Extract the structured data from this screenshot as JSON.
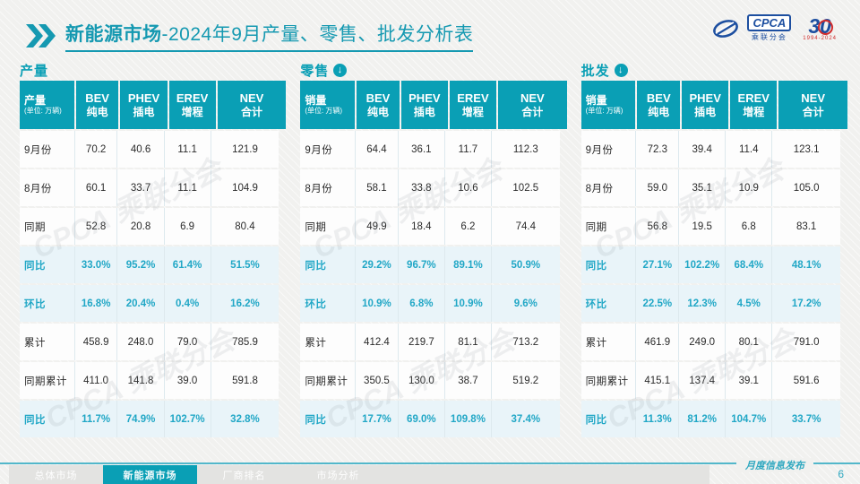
{
  "header": {
    "title_bold": "新能源市场",
    "title_rest": "-2024年9月产量、零售、批发分析表"
  },
  "logo": {
    "cpca": "CPCA",
    "sub": "乘联分会",
    "anniversary": "30",
    "years": "1994-2024"
  },
  "watermark": "CPCA 乘联分会",
  "colors": {
    "accent": "#0a9fb5",
    "highlight_text": "#21a7c6",
    "title": "#1599b1"
  },
  "tables": [
    {
      "section": "产量",
      "row_header": {
        "label": "产量",
        "unit": "(单位: 万辆)"
      },
      "columns": [
        {
          "en": "BEV",
          "cn": "纯电"
        },
        {
          "en": "PHEV",
          "cn": "插电"
        },
        {
          "en": "EREV",
          "cn": "增程"
        },
        {
          "en": "NEV",
          "cn": "合计"
        }
      ],
      "rows": [
        {
          "label": "9月份",
          "values": [
            "70.2",
            "40.6",
            "11.1",
            "121.9"
          ],
          "highlight": false
        },
        {
          "label": "8月份",
          "values": [
            "60.1",
            "33.7",
            "11.1",
            "104.9"
          ],
          "highlight": false
        },
        {
          "label": "同期",
          "values": [
            "52.8",
            "20.8",
            "6.9",
            "80.4"
          ],
          "highlight": false
        },
        {
          "label": "同比",
          "values": [
            "33.0%",
            "95.2%",
            "61.4%",
            "51.5%"
          ],
          "highlight": true
        },
        {
          "label": "环比",
          "values": [
            "16.8%",
            "20.4%",
            "0.4%",
            "16.2%"
          ],
          "highlight": true
        },
        {
          "label": "累计",
          "values": [
            "458.9",
            "248.0",
            "79.0",
            "785.9"
          ],
          "highlight": false
        },
        {
          "label": "同期累计",
          "values": [
            "411.0",
            "141.8",
            "39.0",
            "591.8"
          ],
          "highlight": false
        },
        {
          "label": "同比",
          "values": [
            "11.7%",
            "74.9%",
            "102.7%",
            "32.8%"
          ],
          "highlight": true
        }
      ]
    },
    {
      "section": "零售",
      "has_icon": true,
      "row_header": {
        "label": "销量",
        "unit": "(单位: 万辆)"
      },
      "columns": [
        {
          "en": "BEV",
          "cn": "纯电"
        },
        {
          "en": "PHEV",
          "cn": "插电"
        },
        {
          "en": "EREV",
          "cn": "增程"
        },
        {
          "en": "NEV",
          "cn": "合计"
        }
      ],
      "rows": [
        {
          "label": "9月份",
          "values": [
            "64.4",
            "36.1",
            "11.7",
            "112.3"
          ],
          "highlight": false
        },
        {
          "label": "8月份",
          "values": [
            "58.1",
            "33.8",
            "10.6",
            "102.5"
          ],
          "highlight": false
        },
        {
          "label": "同期",
          "values": [
            "49.9",
            "18.4",
            "6.2",
            "74.4"
          ],
          "highlight": false
        },
        {
          "label": "同比",
          "values": [
            "29.2%",
            "96.7%",
            "89.1%",
            "50.9%"
          ],
          "highlight": true
        },
        {
          "label": "环比",
          "values": [
            "10.9%",
            "6.8%",
            "10.9%",
            "9.6%"
          ],
          "highlight": true
        },
        {
          "label": "累计",
          "values": [
            "412.4",
            "219.7",
            "81.1",
            "713.2"
          ],
          "highlight": false
        },
        {
          "label": "同期累计",
          "values": [
            "350.5",
            "130.0",
            "38.7",
            "519.2"
          ],
          "highlight": false
        },
        {
          "label": "同比",
          "values": [
            "17.7%",
            "69.0%",
            "109.8%",
            "37.4%"
          ],
          "highlight": true
        }
      ]
    },
    {
      "section": "批发",
      "has_icon": true,
      "row_header": {
        "label": "销量",
        "unit": "(单位: 万辆)"
      },
      "columns": [
        {
          "en": "BEV",
          "cn": "纯电"
        },
        {
          "en": "PHEV",
          "cn": "插电"
        },
        {
          "en": "EREV",
          "cn": "增程"
        },
        {
          "en": "NEV",
          "cn": "合计"
        }
      ],
      "rows": [
        {
          "label": "9月份",
          "values": [
            "72.3",
            "39.4",
            "11.4",
            "123.1"
          ],
          "highlight": false
        },
        {
          "label": "8月份",
          "values": [
            "59.0",
            "35.1",
            "10.9",
            "105.0"
          ],
          "highlight": false
        },
        {
          "label": "同期",
          "values": [
            "56.8",
            "19.5",
            "6.8",
            "83.1"
          ],
          "highlight": false
        },
        {
          "label": "同比",
          "values": [
            "27.1%",
            "102.2%",
            "68.4%",
            "48.1%"
          ],
          "highlight": true
        },
        {
          "label": "环比",
          "values": [
            "22.5%",
            "12.3%",
            "4.5%",
            "17.2%"
          ],
          "highlight": true
        },
        {
          "label": "累计",
          "values": [
            "461.9",
            "249.0",
            "80.1",
            "791.0"
          ],
          "highlight": false
        },
        {
          "label": "同期累计",
          "values": [
            "415.1",
            "137.4",
            "39.1",
            "591.6"
          ],
          "highlight": false
        },
        {
          "label": "同比",
          "values": [
            "11.3%",
            "81.2%",
            "104.7%",
            "33.7%"
          ],
          "highlight": true
        }
      ]
    }
  ],
  "footer": {
    "tabs": [
      {
        "label": "总体市场",
        "active": false
      },
      {
        "label": "新能源市场",
        "active": true
      },
      {
        "label": "厂商排名",
        "active": false
      },
      {
        "label": "市场分析",
        "active": false
      }
    ],
    "publish_label": "月度信息发布",
    "page_number": "6"
  }
}
